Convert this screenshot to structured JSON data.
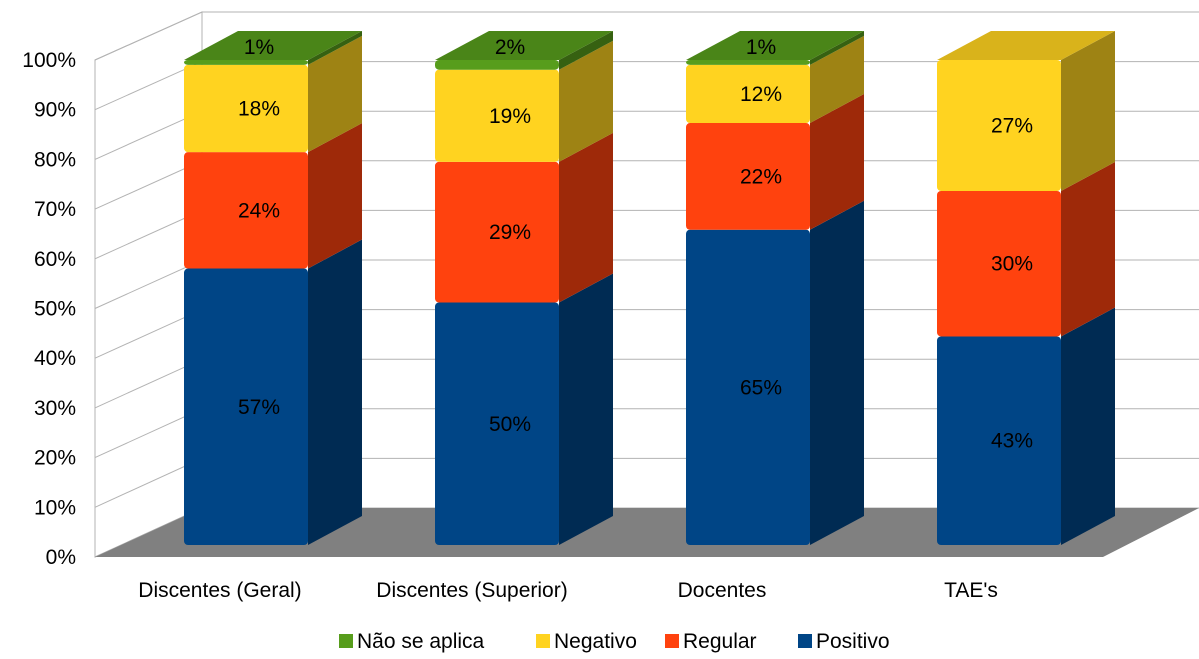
{
  "chart_data": {
    "type": "bar",
    "stacked": true,
    "percent": true,
    "style": "3d",
    "categories": [
      "Discentes (Geral)",
      "Discentes (Superior)",
      "Docentes",
      "TAE's"
    ],
    "series": [
      {
        "name": "Positivo",
        "values": [
          57,
          50,
          65,
          43
        ],
        "labels": [
          "57%",
          "50%",
          "65%",
          "43%"
        ],
        "color": "#004586"
      },
      {
        "name": "Regular",
        "values": [
          24,
          29,
          22,
          30
        ],
        "labels": [
          "24%",
          "29%",
          "22%",
          "30%"
        ],
        "color": "#ff420e"
      },
      {
        "name": "Negativo",
        "values": [
          18,
          19,
          12,
          27
        ],
        "labels": [
          "18%",
          "19%",
          "12%",
          "27%"
        ],
        "color": "#ffd320"
      },
      {
        "name": "Não se aplica",
        "values": [
          1,
          2,
          1,
          0
        ],
        "labels": [
          "1%",
          "2%",
          "1%",
          ""
        ],
        "color": "#579d1c"
      }
    ],
    "legend": [
      "Não se aplica",
      "Negativo",
      "Regular",
      "Positivo"
    ],
    "legend_position": "bottom",
    "ylim": [
      0,
      100
    ],
    "yticks": [
      "0%",
      "10%",
      "20%",
      "30%",
      "40%",
      "50%",
      "60%",
      "70%",
      "80%",
      "90%",
      "100%"
    ],
    "grid": true,
    "title": "",
    "xlabel": "",
    "ylabel": ""
  }
}
